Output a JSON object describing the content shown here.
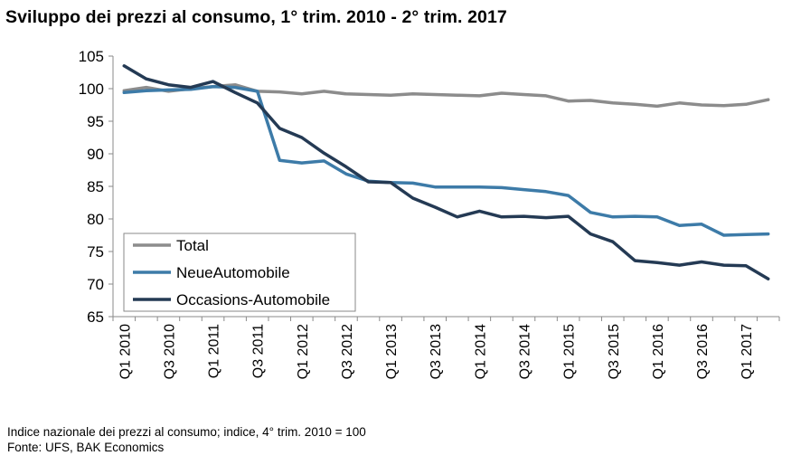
{
  "title": "Sviluppo dei prezzi al consumo, 1° trim. 2010 - 2° trim. 2017",
  "footnotes": {
    "note": "Indice nazionale dei prezzi al consumo; indice, 4° trim. 2010 = 100",
    "source": "Fonte: UFS, BAK Economics"
  },
  "chart_data": {
    "type": "line",
    "title": "Sviluppo dei prezzi al consumo, 1° trim. 2010 - 2° trim. 2017",
    "xlabel": "",
    "ylabel": "",
    "ylim": [
      65,
      105
    ],
    "yticks": [
      65,
      70,
      75,
      80,
      85,
      90,
      95,
      100,
      105
    ],
    "grid": false,
    "legend_position": "bottom-left",
    "categories": [
      "Q1 2010",
      "Q2 2010",
      "Q3 2010",
      "Q4 2010",
      "Q1 2011",
      "Q2 2011",
      "Q3 2011",
      "Q4 2011",
      "Q1 2012",
      "Q2 2012",
      "Q3 2012",
      "Q4 2012",
      "Q1 2013",
      "Q2 2013",
      "Q3 2013",
      "Q4 2013",
      "Q1 2014",
      "Q2 2014",
      "Q3 2014",
      "Q4 2014",
      "Q1 2015",
      "Q2 2015",
      "Q3 2015",
      "Q4 2015",
      "Q1 2016",
      "Q2 2016",
      "Q3 2016",
      "Q4 2016",
      "Q1 2017",
      "Q2 2017"
    ],
    "x_tick_labels": [
      "Q1 2010",
      "Q3 2010",
      "Q1 2011",
      "Q3 2011",
      "Q1 2012",
      "Q3 2012",
      "Q1 2013",
      "Q3 2013",
      "Q1 2014",
      "Q3 2014",
      "Q1 2015",
      "Q3 2015",
      "Q1 2016",
      "Q3 2016",
      "Q1 2017"
    ],
    "series": [
      {
        "name": "Total",
        "color": "#8c8c8c",
        "values": [
          99.7,
          100.2,
          99.6,
          100.0,
          100.3,
          100.6,
          99.6,
          99.5,
          99.2,
          99.6,
          99.2,
          99.1,
          99.0,
          99.2,
          99.1,
          99.0,
          98.9,
          99.3,
          99.1,
          98.9,
          98.1,
          98.2,
          97.8,
          97.6,
          97.3,
          97.8,
          97.5,
          97.4,
          97.6,
          98.3
        ]
      },
      {
        "name": "NeueAutomobile",
        "color": "#3d7ba8",
        "values": [
          99.4,
          99.7,
          99.8,
          99.9,
          100.3,
          100.2,
          99.6,
          89.0,
          88.6,
          88.9,
          86.9,
          85.8,
          85.6,
          85.5,
          84.9,
          84.9,
          84.9,
          84.8,
          84.5,
          84.2,
          83.6,
          81.0,
          80.3,
          80.4,
          80.3,
          79.0,
          79.2,
          77.5,
          77.6,
          77.7
        ]
      },
      {
        "name": "Occasions-Automobile",
        "color": "#243a54",
        "values": [
          103.5,
          101.5,
          100.6,
          100.2,
          101.1,
          99.4,
          97.8,
          93.9,
          92.5,
          90.1,
          88.0,
          85.7,
          85.6,
          83.2,
          81.8,
          80.3,
          81.2,
          80.3,
          80.4,
          80.2,
          80.4,
          77.7,
          76.5,
          73.6,
          73.3,
          72.9,
          73.4,
          72.9,
          72.8,
          70.8
        ]
      }
    ]
  }
}
